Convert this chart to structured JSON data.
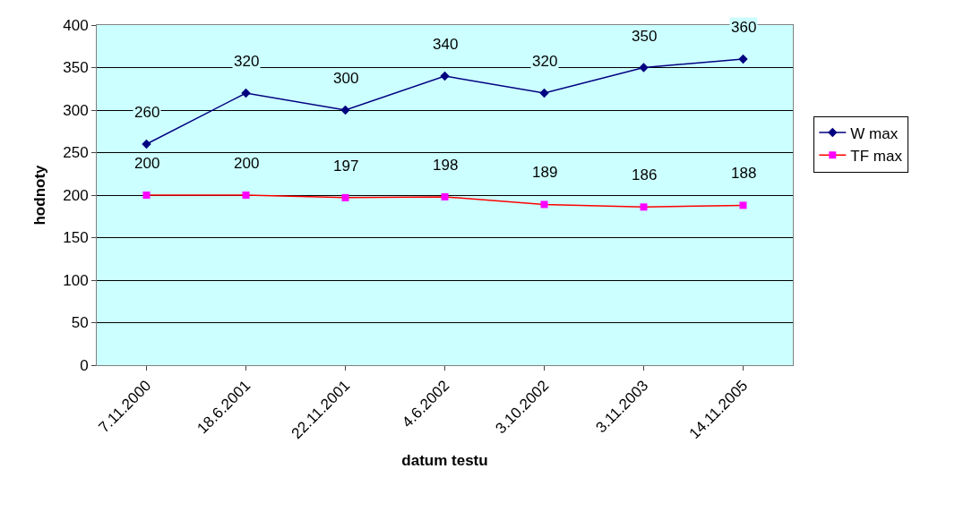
{
  "chart_data": {
    "type": "line",
    "xlabel": "datum testu",
    "ylabel": "hodnoty",
    "categories": [
      "7.11.2000",
      "18.6.2001",
      "22.11.2001",
      "4.6.2002",
      "3.10.2002",
      "3.11.2003",
      "14.11.2005"
    ],
    "series": [
      {
        "name": "W max",
        "color": "#000080",
        "marker": "diamond",
        "values": [
          260,
          320,
          300,
          340,
          320,
          350,
          360
        ]
      },
      {
        "name": "TF max",
        "color": "#ff0000",
        "colors": [
          "#ff00ff",
          "#ff00ff",
          "#ff00ff",
          "#ff00ff",
          "#ff00ff",
          "#ff00ff",
          "#ff00ff"
        ],
        "marker": "square",
        "values": [
          200,
          200,
          197,
          198,
          189,
          186,
          188
        ]
      }
    ],
    "ylim": [
      0,
      400
    ],
    "yticks": [
      0,
      50,
      100,
      150,
      200,
      250,
      300,
      350,
      400
    ],
    "grid": "y",
    "legend": "right",
    "data_labels": true,
    "line_style": "solid"
  }
}
